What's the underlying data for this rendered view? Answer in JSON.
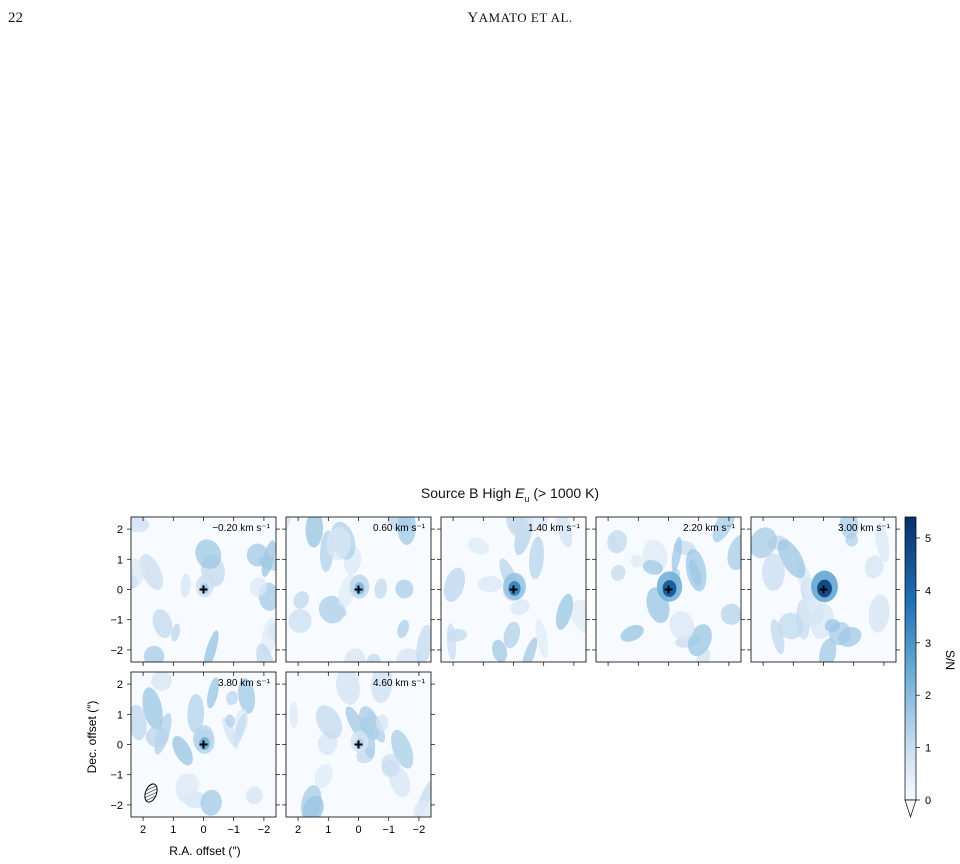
{
  "header": {
    "page_number": "22",
    "running_head_first": "Y",
    "running_head_rest": "AMATO ET AL."
  },
  "figure": {
    "title_prefix": "Source B High ",
    "title_var": "E",
    "title_sub": "u",
    "title_suffix": " (> 1000 K)",
    "xlabel": "R.A. offset (″)",
    "ylabel": "Dec. offset (″)",
    "colorbar_label": "S/N",
    "colorbar_ticks": [
      "0",
      "1",
      "2",
      "3",
      "4",
      "5"
    ],
    "x_ticks": [
      "2",
      "1",
      "0",
      "−1",
      "−2"
    ],
    "y_ticks": [
      "2",
      "1",
      "0",
      "−1",
      "−2"
    ],
    "panels": [
      {
        "label": "−0.20 km s⁻¹",
        "peak": 1.5
      },
      {
        "label": "0.60 km s⁻¹",
        "peak": 2.2
      },
      {
        "label": "1.40 km s⁻¹",
        "peak": 3.4
      },
      {
        "label": "2.20 km s⁻¹",
        "peak": 4.4
      },
      {
        "label": "3.00 km s⁻¹",
        "peak": 4.9
      },
      {
        "label": "3.80 km s⁻¹",
        "peak": 2.4
      },
      {
        "label": "4.60 km s⁻¹",
        "peak": 1.4
      }
    ]
  },
  "chart_data": {
    "type": "heatmap",
    "title": "Source B High Eu (> 1000 K)",
    "xlabel": "R.A. offset (″)",
    "ylabel": "Dec. offset (″)",
    "xlim": [
      2.4,
      -2.4
    ],
    "ylim": [
      -2.4,
      2.4
    ],
    "colorbar": {
      "label": "S/N",
      "range": [
        0,
        5.4
      ],
      "ticks": [
        0,
        1,
        2,
        3,
        4,
        5
      ]
    },
    "channels": [
      "−0.20 km s⁻¹",
      "0.60 km s⁻¹",
      "1.40 km s⁻¹",
      "2.20 km s⁻¹",
      "3.00 km s⁻¹",
      "3.80 km s⁻¹",
      "4.60 km s⁻¹"
    ],
    "peak_sn": [
      1.5,
      2.2,
      3.4,
      4.4,
      4.9,
      2.4,
      1.4
    ]
  }
}
